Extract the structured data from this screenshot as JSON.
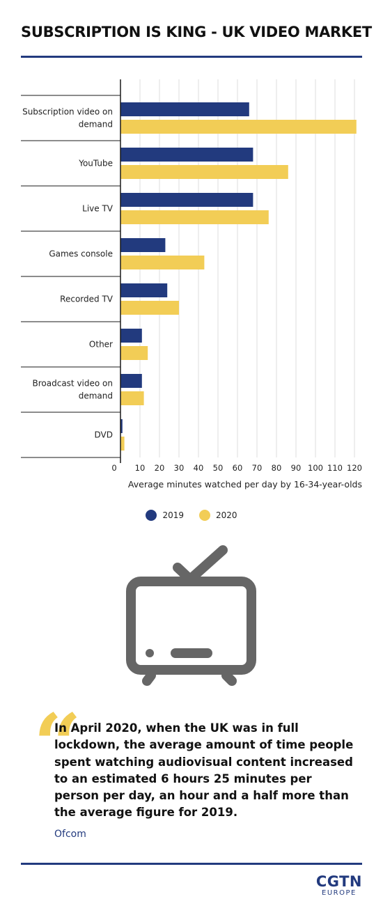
{
  "title": "SUBSCRIPTION IS KING - UK VIDEO MARKET",
  "colors": {
    "accent": "#223a7e",
    "series_2019": "#223a7e",
    "series_2020": "#f2cd56",
    "icon": "#666666",
    "grid": "#dcdcdc"
  },
  "chart_data": {
    "type": "bar",
    "orientation": "horizontal",
    "categories": [
      "Subscription video on demand",
      "YouTube",
      "Live TV",
      "Games console",
      "Recorded TV",
      "Other",
      "Broadcast video on demand",
      "DVD"
    ],
    "category_lines": [
      [
        "Subscription video on",
        "demand"
      ],
      [
        "YouTube"
      ],
      [
        "Live TV"
      ],
      [
        "Games console"
      ],
      [
        "Recorded TV"
      ],
      [
        "Other"
      ],
      [
        "Broadcast video on",
        "demand"
      ],
      [
        "DVD"
      ]
    ],
    "series": [
      {
        "name": "2019",
        "values": [
          66,
          68,
          68,
          23,
          24,
          11,
          11,
          1
        ]
      },
      {
        "name": "2020",
        "values": [
          121,
          86,
          76,
          43,
          30,
          14,
          12,
          2
        ]
      }
    ],
    "xlabel": "Average minutes watched per day by 16-34-year-olds",
    "xticks": [
      0,
      10,
      20,
      30,
      40,
      50,
      60,
      70,
      80,
      90,
      100,
      110,
      120
    ],
    "xlim": [
      0,
      122
    ],
    "grid": true,
    "legend_placement": "bottom-center"
  },
  "legend": [
    {
      "label": "2019"
    },
    {
      "label": "2020"
    }
  ],
  "icon": "tv-icon",
  "quote_icon": "quote-mark-icon",
  "quote": {
    "mark": "“",
    "text": "In April 2020, when the UK was in full lockdown, the average amount of time people spent watching audiovisual content increased to an estimated 6 hours 25 minutes per person per day, an hour and a half more than the average figure for 2019.",
    "source": "Ofcom"
  },
  "logo": {
    "main": "CGTN",
    "sub": "EUROPE"
  }
}
